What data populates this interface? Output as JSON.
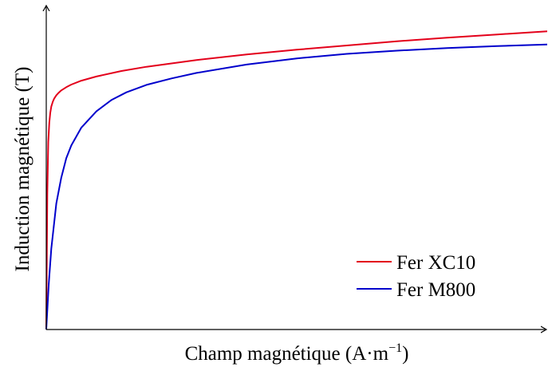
{
  "chart_data": {
    "type": "line",
    "xlabel": "Champ magnétique",
    "xlabel_unit_base": "A·m",
    "xlabel_unit_exp": "−1",
    "ylabel": "Induction magnétique (T)",
    "ticks": false,
    "grid": false,
    "legend_position": "bottom-right",
    "xlim": [
      0,
      1
    ],
    "ylim": [
      0,
      1
    ],
    "series": [
      {
        "name": "Fer XC10",
        "color": "#e3001b",
        "x": [
          0,
          0.002,
          0.004,
          0.006,
          0.008,
          0.01,
          0.013,
          0.016,
          0.02,
          0.025,
          0.03,
          0.04,
          0.05,
          0.07,
          0.1,
          0.15,
          0.2,
          0.3,
          0.4,
          0.5,
          0.6,
          0.7,
          0.8,
          0.9,
          1.0
        ],
        "y": [
          0,
          0.42,
          0.58,
          0.64,
          0.67,
          0.69,
          0.705,
          0.715,
          0.725,
          0.733,
          0.74,
          0.75,
          0.758,
          0.77,
          0.783,
          0.8,
          0.813,
          0.834,
          0.851,
          0.866,
          0.879,
          0.892,
          0.903,
          0.913,
          0.923
        ]
      },
      {
        "name": "Fer M800",
        "color": "#0000cc",
        "x": [
          0,
          0.005,
          0.01,
          0.02,
          0.03,
          0.04,
          0.05,
          0.07,
          0.1,
          0.13,
          0.16,
          0.2,
          0.25,
          0.3,
          0.4,
          0.5,
          0.6,
          0.7,
          0.8,
          0.9,
          1.0
        ],
        "y": [
          0,
          0.14,
          0.25,
          0.39,
          0.47,
          0.53,
          0.57,
          0.625,
          0.675,
          0.71,
          0.734,
          0.757,
          0.777,
          0.794,
          0.82,
          0.839,
          0.853,
          0.863,
          0.871,
          0.877,
          0.882
        ]
      }
    ]
  }
}
